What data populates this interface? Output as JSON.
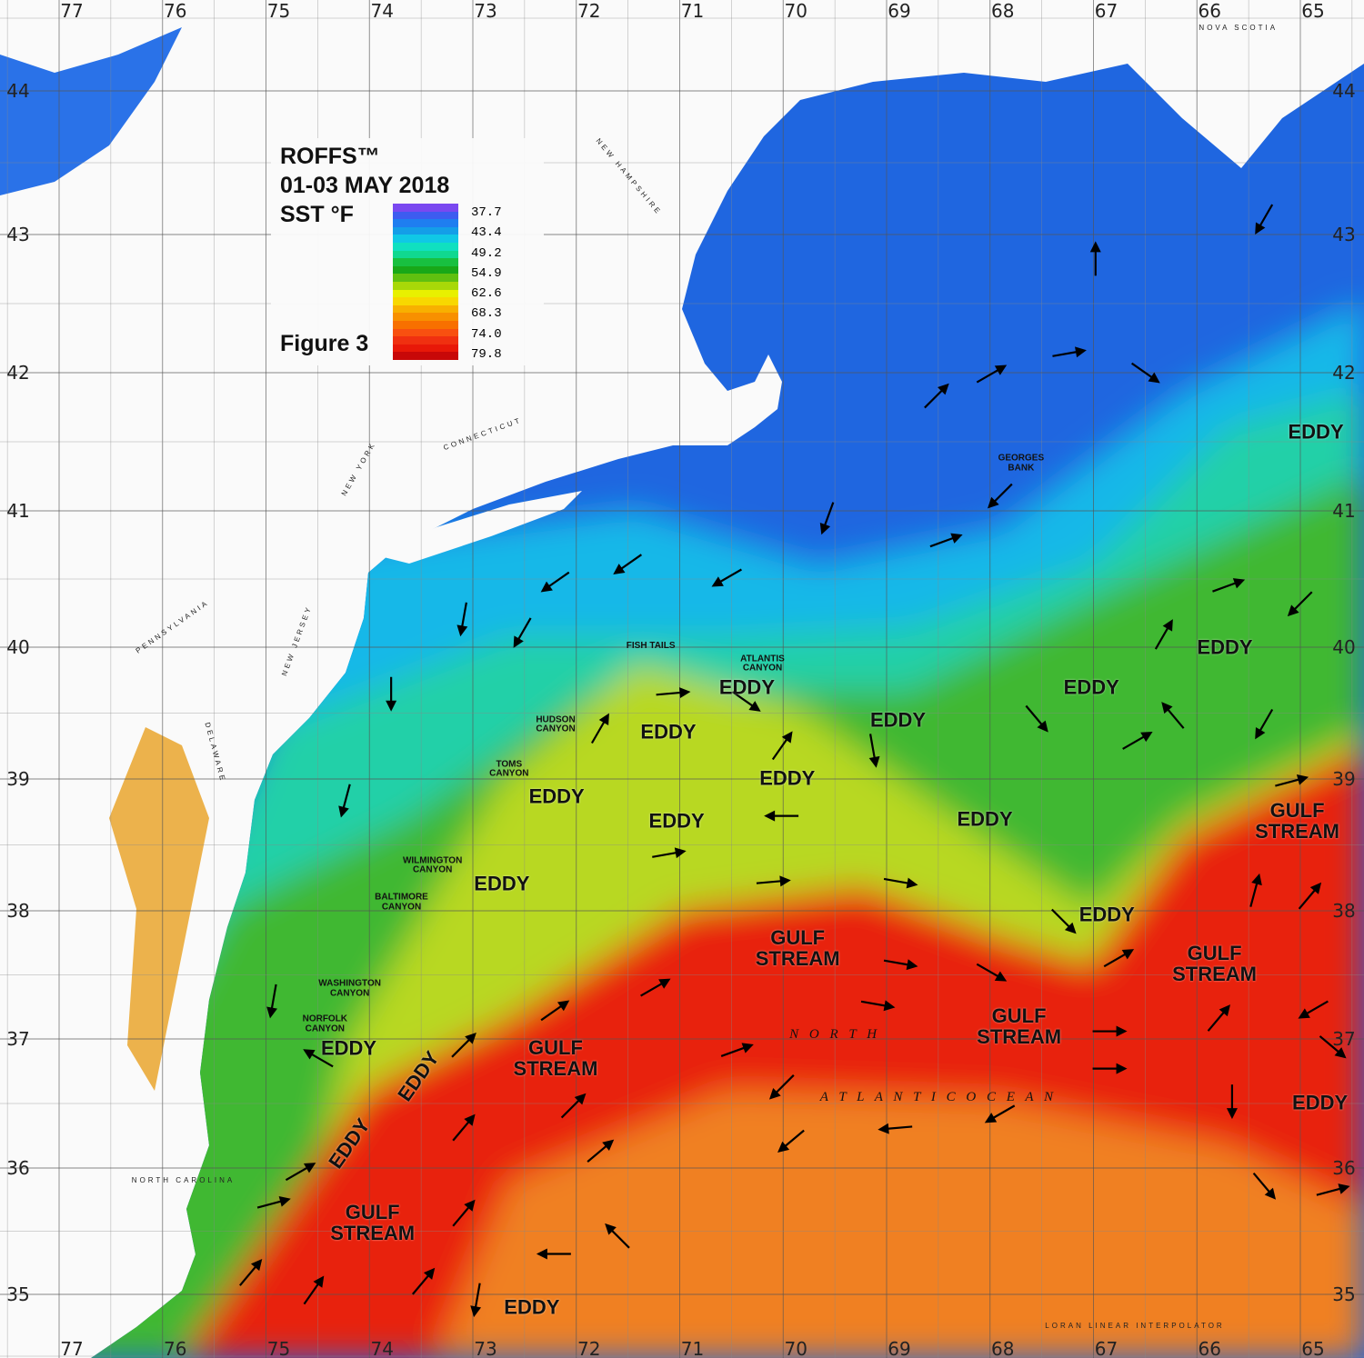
{
  "legend": {
    "title": "ROFFS™",
    "date": "01-03 MAY 2018",
    "units": "SST °F",
    "figure": "Figure 3",
    "values": [
      "37.7",
      "43.4",
      "49.2",
      "54.9",
      "62.6",
      "68.3",
      "74.0",
      "79.8"
    ],
    "colors": [
      "#7a48f0",
      "#3d5cf0",
      "#1f7ef0",
      "#149ee8",
      "#10c8e6",
      "#10e0c0",
      "#10d890",
      "#18c040",
      "#18a818",
      "#60c010",
      "#a8d808",
      "#e8f000",
      "#f8d800",
      "#f8b000",
      "#f89000",
      "#f87000",
      "#f85010",
      "#f03010",
      "#e81808",
      "#c80808"
    ]
  },
  "grid": {
    "lon_labels": [
      "77",
      "76",
      "75",
      "74",
      "73",
      "72",
      "71",
      "70",
      "69",
      "68",
      "67",
      "66",
      "65"
    ],
    "lat_labels": [
      "44",
      "43",
      "42",
      "41",
      "40",
      "39",
      "38",
      "37",
      "36",
      "35"
    ]
  },
  "features": [
    {
      "text": "EDDY",
      "lat": 41.57,
      "lon": 64.85,
      "style": "big"
    },
    {
      "text": "GEORGES BANK",
      "lat": 41.34,
      "lon": 67.7,
      "style": "small"
    },
    {
      "text": "EDDY",
      "lat": 40.0,
      "lon": 65.73,
      "style": "big"
    },
    {
      "text": "EDDY",
      "lat": 39.7,
      "lon": 67.02,
      "style": "big"
    },
    {
      "text": "FISH TAILS",
      "lat": 40.01,
      "lon": 71.28,
      "style": "small"
    },
    {
      "text": "ATLANTIS CANYON",
      "lat": 39.87,
      "lon": 70.2,
      "style": "small"
    },
    {
      "text": "EDDY",
      "lat": 39.73,
      "lon": 70.35,
      "style": "big"
    },
    {
      "text": "EDDY",
      "lat": 39.45,
      "lon": 68.89,
      "style": "big"
    },
    {
      "text": "HUDSON CANYON",
      "lat": 39.41,
      "lon": 72.2,
      "style": "small"
    },
    {
      "text": "EDDY",
      "lat": 39.36,
      "lon": 71.11,
      "style": "big"
    },
    {
      "text": "EDDY",
      "lat": 39.01,
      "lon": 69.96,
      "style": "big"
    },
    {
      "text": "TOMS CANYON",
      "lat": 39.07,
      "lon": 72.65,
      "style": "small"
    },
    {
      "text": "EDDY",
      "lat": 38.87,
      "lon": 72.19,
      "style": "big"
    },
    {
      "text": "EDDY",
      "lat": 38.68,
      "lon": 71.03,
      "style": "big"
    },
    {
      "text": "EDDY",
      "lat": 38.7,
      "lon": 68.05,
      "style": "big"
    },
    {
      "text": "GULF STREAM",
      "lat": 38.68,
      "lon": 65.03,
      "style": "big"
    },
    {
      "text": "WILMINGTON CANYON",
      "lat": 38.34,
      "lon": 73.39,
      "style": "small"
    },
    {
      "text": "EDDY",
      "lat": 38.21,
      "lon": 72.72,
      "style": "big"
    },
    {
      "text": "BALTIMORE CANYON",
      "lat": 38.06,
      "lon": 73.69,
      "style": "small"
    },
    {
      "text": "EDDY",
      "lat": 37.97,
      "lon": 66.87,
      "style": "big"
    },
    {
      "text": "GULF STREAM",
      "lat": 37.71,
      "lon": 69.86,
      "style": "big"
    },
    {
      "text": "GULF STREAM",
      "lat": 37.59,
      "lon": 65.83,
      "style": "big"
    },
    {
      "text": "WASHINGTON CANYON",
      "lat": 37.39,
      "lon": 74.19,
      "style": "small"
    },
    {
      "text": "NORFOLK CANYON",
      "lat": 37.11,
      "lon": 74.43,
      "style": "small"
    },
    {
      "text": "EDDY",
      "lat": 36.96,
      "lon": 74.2,
      "style": "big"
    },
    {
      "text": "GULF STREAM",
      "lat": 37.1,
      "lon": 67.72,
      "style": "big"
    },
    {
      "text": "GULF STREAM",
      "lat": 36.85,
      "lon": 72.2,
      "style": "big"
    },
    {
      "text": "EDDY",
      "lat": 36.71,
      "lon": 73.53,
      "style": "big",
      "rotate": -55
    },
    {
      "text": "EDDY",
      "lat": 36.19,
      "lon": 74.2,
      "style": "big",
      "rotate": -55
    },
    {
      "text": "EDDY",
      "lat": 36.51,
      "lon": 64.81,
      "style": "big"
    },
    {
      "text": "GULF STREAM",
      "lat": 35.57,
      "lon": 73.97,
      "style": "big"
    },
    {
      "text": "EDDY",
      "lat": 34.9,
      "lon": 72.43,
      "style": "big"
    },
    {
      "text": "N O R T H",
      "lat": 37.03,
      "lon": 69.5,
      "style": "ocean"
    },
    {
      "text": "A T L A N T I C     O C E A N",
      "lat": 36.54,
      "lon": 68.5,
      "style": "ocean"
    },
    {
      "text": "NOVA SCOTIA",
      "lat": 44.6,
      "lon": 65.6,
      "style": "place"
    },
    {
      "text": "NEW HAMPSHIRE",
      "lat": 43.4,
      "lon": 71.5,
      "style": "place",
      "rotate": 50
    },
    {
      "text": "CONNECTICUT",
      "lat": 41.55,
      "lon": 72.9,
      "style": "place",
      "rotate": -20
    },
    {
      "text": "NEW YORK",
      "lat": 41.3,
      "lon": 74.1,
      "style": "place",
      "rotate": -60
    },
    {
      "text": "PENNSYLVANIA",
      "lat": 40.15,
      "lon": 75.9,
      "style": "place",
      "rotate": -35
    },
    {
      "text": "NEW JERSEY",
      "lat": 40.05,
      "lon": 74.7,
      "style": "place",
      "rotate": -70
    },
    {
      "text": "DELAWARE",
      "lat": 39.2,
      "lon": 75.5,
      "style": "place",
      "rotate": 75
    },
    {
      "text": "NORTH CAROLINA",
      "lat": 35.9,
      "lon": 75.8,
      "style": "place"
    },
    {
      "text": "LORAN LINEAR INTERPOLATOR",
      "lat": 34.74,
      "lon": 66.6,
      "style": "place"
    }
  ],
  "currents": [
    [
      43.11,
      65.35,
      210
    ],
    [
      42.82,
      66.98,
      0
    ],
    [
      42.14,
      67.24,
      80
    ],
    [
      42.0,
      66.5,
      125
    ],
    [
      41.99,
      67.99,
      60
    ],
    [
      41.83,
      68.52,
      45
    ],
    [
      41.11,
      67.9,
      225
    ],
    [
      40.95,
      69.57,
      200
    ],
    [
      40.78,
      68.43,
      70
    ],
    [
      40.61,
      71.5,
      235
    ],
    [
      40.48,
      72.2,
      235
    ],
    [
      40.51,
      70.54,
      240
    ],
    [
      40.21,
      73.09,
      190
    ],
    [
      40.11,
      72.52,
      210
    ],
    [
      39.65,
      71.07,
      85
    ],
    [
      39.65,
      73.79,
      180
    ],
    [
      38.84,
      74.23,
      195
    ],
    [
      39.38,
      71.77,
      30
    ],
    [
      39.59,
      70.36,
      125
    ],
    [
      39.25,
      70.01,
      35
    ],
    [
      38.72,
      70.01,
      270
    ],
    [
      38.43,
      71.11,
      80
    ],
    [
      39.22,
      69.13,
      170
    ],
    [
      39.46,
      67.55,
      140
    ],
    [
      39.29,
      66.58,
      60
    ],
    [
      38.98,
      65.09,
      75
    ],
    [
      38.11,
      64.91,
      40
    ],
    [
      38.15,
      65.44,
      15
    ],
    [
      37.16,
      65.79,
      40
    ],
    [
      37.59,
      68.87,
      100
    ],
    [
      37.52,
      67.99,
      120
    ],
    [
      37.27,
      69.09,
      100
    ],
    [
      37.06,
      66.85,
      90
    ],
    [
      36.77,
      66.85,
      90
    ],
    [
      36.42,
      67.9,
      240
    ],
    [
      36.31,
      68.91,
      265
    ],
    [
      37.4,
      71.24,
      60
    ],
    [
      37.22,
      72.21,
      55
    ],
    [
      36.95,
      73.09,
      45
    ],
    [
      36.31,
      73.09,
      40
    ],
    [
      36.48,
      72.03,
      45
    ],
    [
      36.13,
      71.77,
      50
    ],
    [
      36.91,
      70.45,
      70
    ],
    [
      36.63,
      70.01,
      225
    ],
    [
      36.21,
      69.92,
      230
    ],
    [
      35.64,
      73.09,
      40
    ],
    [
      35.1,
      73.48,
      40
    ],
    [
      35.03,
      74.54,
      35
    ],
    [
      35.17,
      75.15,
      40
    ],
    [
      34.96,
      72.96,
      190
    ],
    [
      35.32,
      72.21,
      270
    ],
    [
      35.46,
      71.6,
      315
    ],
    [
      35.86,
      65.35,
      140
    ],
    [
      35.82,
      64.69,
      75
    ],
    [
      37.23,
      64.87,
      240
    ],
    [
      36.94,
      64.69,
      130
    ],
    [
      36.52,
      65.66,
      180
    ],
    [
      40.32,
      65.0,
      225
    ],
    [
      40.45,
      65.7,
      70
    ],
    [
      40.09,
      66.32,
      30
    ],
    [
      39.42,
      65.35,
      210
    ],
    [
      39.48,
      66.23,
      320
    ],
    [
      37.92,
      67.29,
      135
    ],
    [
      37.63,
      66.76,
      60
    ],
    [
      38.22,
      68.87,
      100
    ],
    [
      38.22,
      70.1,
      85
    ],
    [
      37.3,
      74.93,
      190
    ],
    [
      36.85,
      74.49,
      300
    ],
    [
      35.72,
      74.93,
      75
    ],
    [
      35.97,
      74.67,
      60
    ]
  ]
}
